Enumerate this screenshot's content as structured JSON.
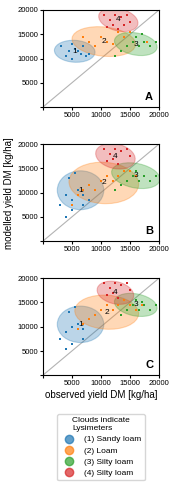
{
  "chart_data": [
    {
      "type": "scatter",
      "title": "A",
      "xlim": [
        0,
        20000
      ],
      "ylim": [
        0,
        20000
      ],
      "xticks": [
        {
          "value": 0,
          "label": ""
        },
        5000,
        10000,
        15000,
        20000
      ],
      "yticks": [
        {
          "value": 0,
          "label": ""
        },
        5000,
        10000,
        15000,
        20000
      ],
      "diagonal": [
        0,
        20000
      ],
      "series": [
        {
          "name": "(1) Sandy loam",
          "label": "1",
          "x": [
            3200,
            4000,
            4500,
            5000,
            5500,
            6000,
            6500,
            7000,
            7500,
            8000,
            5000
          ],
          "y": [
            12500,
            10500,
            11500,
            10000,
            12000,
            11500,
            11000,
            12500,
            10500,
            11000,
            13000
          ],
          "ellipse": {
            "cx": 5500,
            "cy": 11500,
            "width": 7000,
            "height": 4500,
            "angle": -5
          }
        },
        {
          "name": "(2) Loam",
          "label": "2",
          "x": [
            7000,
            8000,
            9000,
            10000,
            11000,
            12000,
            13000,
            14000,
            15000,
            16000,
            17000,
            18000
          ],
          "y": [
            14500,
            13500,
            12500,
            14500,
            13500,
            13000,
            15500,
            14500,
            15500,
            14500,
            15000,
            13500
          ],
          "ellipse": {
            "cx": 10500,
            "cy": 13500,
            "width": 11000,
            "height": 6000,
            "angle": -8
          }
        },
        {
          "name": "(3) Silty loam",
          "label": "3",
          "x": [
            12500,
            13500,
            14500,
            15500,
            16500,
            17500,
            18500,
            19500,
            16000,
            17000
          ],
          "y": [
            10500,
            11500,
            12500,
            13500,
            12500,
            13500,
            12500,
            13500,
            14500,
            15000
          ],
          "ellipse": {
            "cx": 16000,
            "cy": 13000,
            "width": 7500,
            "height": 4500,
            "angle": -15
          }
        },
        {
          "name": "(4) Silty loam",
          "label": "4",
          "x": [
            10500,
            11500,
            12500,
            13500,
            14500,
            15000,
            11000,
            12000,
            13000,
            14000
          ],
          "y": [
            19000,
            18000,
            19000,
            18500,
            19000,
            17500,
            16500,
            17000,
            16000,
            17000
          ],
          "ellipse": {
            "cx": 13000,
            "cy": 18000,
            "width": 7000,
            "height": 4500,
            "angle": -20
          }
        }
      ]
    },
    {
      "type": "scatter",
      "title": "B",
      "ylabel": "modelled yield DM [kg/ha]",
      "xlim": [
        0,
        20000
      ],
      "ylim": [
        0,
        20000
      ],
      "xticks": [
        {
          "value": 0,
          "label": ""
        },
        5000,
        10000,
        15000,
        20000
      ],
      "yticks": [
        {
          "value": 0,
          "label": ""
        },
        5000,
        10000,
        15000,
        20000
      ],
      "diagonal": [
        0,
        20000
      ],
      "series": [
        {
          "name": "(1) Sandy loam",
          "label": "1",
          "x": [
            3000,
            4000,
            5000,
            6000,
            7000,
            8000,
            4500,
            5500,
            4000,
            5000,
            7000,
            8000
          ],
          "y": [
            7500,
            9500,
            8500,
            10500,
            9500,
            11500,
            13000,
            14000,
            5000,
            6500,
            7500,
            8500
          ],
          "ellipse": {
            "cx": 6500,
            "cy": 10500,
            "width": 8000,
            "height": 8000,
            "angle": 0
          }
        },
        {
          "name": "(2) Loam",
          "label": "2",
          "x": [
            5000,
            6000,
            7000,
            8000,
            9000,
            10000,
            11000,
            12000,
            13000,
            14000,
            15000,
            16000
          ],
          "y": [
            7500,
            9500,
            10500,
            11500,
            10500,
            12500,
            13500,
            12500,
            13500,
            14500,
            14500,
            13500
          ],
          "ellipse": {
            "cx": 10500,
            "cy": 12000,
            "width": 12000,
            "height": 8500,
            "angle": -5
          }
        },
        {
          "name": "(3) Silty loam",
          "label": "3",
          "x": [
            12500,
            13500,
            14500,
            15500,
            16500,
            17500,
            18500,
            19500,
            16000
          ],
          "y": [
            10500,
            11500,
            12500,
            13500,
            12500,
            13500,
            12500,
            13500,
            14500
          ],
          "ellipse": {
            "cx": 16000,
            "cy": 13500,
            "width": 8500,
            "height": 5000,
            "angle": -15
          }
        },
        {
          "name": "(4) Silty loam",
          "label": "4",
          "x": [
            10500,
            11500,
            12500,
            13500,
            14500,
            15000,
            11000,
            12000,
            13000
          ],
          "y": [
            19000,
            18000,
            19000,
            18500,
            19000,
            17500,
            16500,
            17000,
            16000
          ],
          "ellipse": {
            "cx": 12500,
            "cy": 17500,
            "width": 7000,
            "height": 5000,
            "angle": -20
          }
        }
      ]
    },
    {
      "type": "scatter",
      "title": "C",
      "xlabel": "observed yield DM [kg/ha]",
      "xlim": [
        0,
        20000
      ],
      "ylim": [
        0,
        20000
      ],
      "xticks": [
        {
          "value": 0,
          "label": ""
        },
        5000,
        10000,
        15000,
        20000
      ],
      "yticks": [
        {
          "value": 0,
          "label": ""
        },
        5000,
        10000,
        15000,
        20000
      ],
      "diagonal": [
        0,
        20000
      ],
      "legend": "upper center",
      "legend_title": "Clouds indicate\nLysimeters",
      "series": [
        {
          "name": "(1) Sandy loam",
          "label": "1",
          "x": [
            3000,
            4000,
            5000,
            6000,
            7000,
            8000,
            4500,
            5500,
            4000,
            5000,
            7000
          ],
          "y": [
            7500,
            9000,
            10000,
            10500,
            9500,
            11500,
            13000,
            14000,
            5500,
            6500,
            7500
          ],
          "ellipse": {
            "cx": 6500,
            "cy": 10500,
            "width": 8000,
            "height": 7500,
            "angle": 0
          }
        },
        {
          "name": "(2) Loam",
          "label": "2",
          "x": [
            6000,
            7000,
            8000,
            9000,
            10000,
            11000,
            12000,
            13000,
            14000,
            15000,
            16000,
            17000
          ],
          "y": [
            9500,
            10500,
            11500,
            12500,
            13500,
            14500,
            13500,
            14500,
            15500,
            14500,
            13500,
            14500
          ],
          "ellipse": {
            "cx": 11000,
            "cy": 13000,
            "width": 11000,
            "height": 7000,
            "angle": -5
          }
        },
        {
          "name": "(3) Silty loam",
          "label": "3",
          "x": [
            13500,
            14500,
            15500,
            16500,
            17500,
            18500,
            19500,
            16000,
            17000
          ],
          "y": [
            12500,
            13500,
            14500,
            13500,
            14500,
            13500,
            14500,
            15500,
            15000
          ],
          "ellipse": {
            "cx": 16000,
            "cy": 14500,
            "width": 7500,
            "height": 4500,
            "angle": -15
          }
        },
        {
          "name": "(4) Silty loam",
          "label": "4",
          "x": [
            10500,
            11500,
            12500,
            13500,
            14500,
            15000,
            11000,
            12000,
            13000
          ],
          "y": [
            19000,
            18000,
            19000,
            18500,
            19000,
            17500,
            16500,
            17000,
            16000
          ],
          "ellipse": {
            "cx": 12500,
            "cy": 17000,
            "width": 6500,
            "height": 4500,
            "angle": -20
          }
        }
      ]
    }
  ]
}
